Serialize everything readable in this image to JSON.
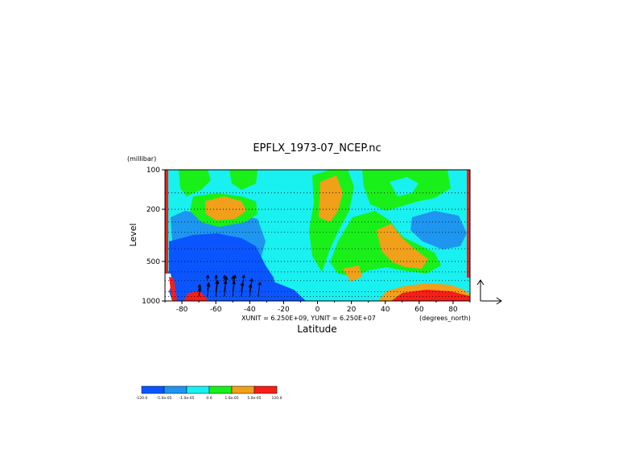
{
  "chart_data": {
    "type": "heatmap",
    "title": "EPFLX_1973-07_NCEP.nc",
    "xlabel": "Latitude",
    "ylabel": "Level",
    "yunit": "(millibar)",
    "xunit_label": "(degrees_north)",
    "vector_units": "XUNIT = 6.250E+09, YUNIT = 6.250E+07",
    "xlim": [
      -90,
      90
    ],
    "ylim": [
      1000,
      100
    ],
    "yscale": "log",
    "x_ticks": [
      "-80",
      "-60",
      "-40",
      "-20",
      "0",
      "20",
      "40",
      "60",
      "80"
    ],
    "y_ticks": [
      "100",
      "200",
      "500",
      "1000"
    ],
    "x_tick_values": [
      -80,
      -60,
      -40,
      -20,
      0,
      20,
      40,
      60,
      80
    ],
    "y_tick_values": [
      100,
      200,
      500,
      1000
    ],
    "pressure_levels": [
      100,
      150,
      200,
      250,
      300,
      400,
      500,
      600,
      700,
      850,
      925,
      1000
    ],
    "colorbar": {
      "colors": [
        "#0a55ff",
        "#1e96f0",
        "#19f0f0",
        "#19f019",
        "#f0a019",
        "#f51e19"
      ],
      "labels": [
        "-120.0",
        "-5.0e-05",
        "-1.0e-05",
        "0.0",
        "1.0e-05",
        "5.0e-05",
        "120.0"
      ]
    },
    "arrows": [
      {
        "lat": -70,
        "p": 925,
        "u": 0.3,
        "v": 0.5
      },
      {
        "lat": -65,
        "p": 925,
        "u": 0.3,
        "v": 0.7
      },
      {
        "lat": -60,
        "p": 925,
        "u": 0.4,
        "v": 0.9
      },
      {
        "lat": -55,
        "p": 925,
        "u": 0.5,
        "v": 1.1
      },
      {
        "lat": -50,
        "p": 925,
        "u": 0.5,
        "v": 1.2
      },
      {
        "lat": -45,
        "p": 925,
        "u": 0.6,
        "v": 1.2
      },
      {
        "lat": -40,
        "p": 925,
        "u": 0.5,
        "v": 1.0
      },
      {
        "lat": -35,
        "p": 925,
        "u": 0.4,
        "v": 0.8
      },
      {
        "lat": -70,
        "p": 850,
        "u": 0.2,
        "v": 0.4
      },
      {
        "lat": -65,
        "p": 850,
        "u": 0.3,
        "v": 0.5
      },
      {
        "lat": -60,
        "p": 850,
        "u": 0.3,
        "v": 0.6
      },
      {
        "lat": -55,
        "p": 850,
        "u": 0.3,
        "v": 0.6
      },
      {
        "lat": -50,
        "p": 850,
        "u": 0.3,
        "v": 0.6
      },
      {
        "lat": -45,
        "p": 850,
        "u": 0.3,
        "v": 0.5
      },
      {
        "lat": -40,
        "p": 850,
        "u": 0.2,
        "v": 0.4
      },
      {
        "lat": -65,
        "p": 700,
        "u": 0.1,
        "v": 0.3
      },
      {
        "lat": -60,
        "p": 700,
        "u": 0.1,
        "v": 0.3
      },
      {
        "lat": -55,
        "p": 700,
        "u": 0.1,
        "v": 0.3
      },
      {
        "lat": -50,
        "p": 700,
        "u": 0.1,
        "v": 0.25
      }
    ],
    "grid": "dotted",
    "legend": "bottom-left",
    "note": ""
  }
}
